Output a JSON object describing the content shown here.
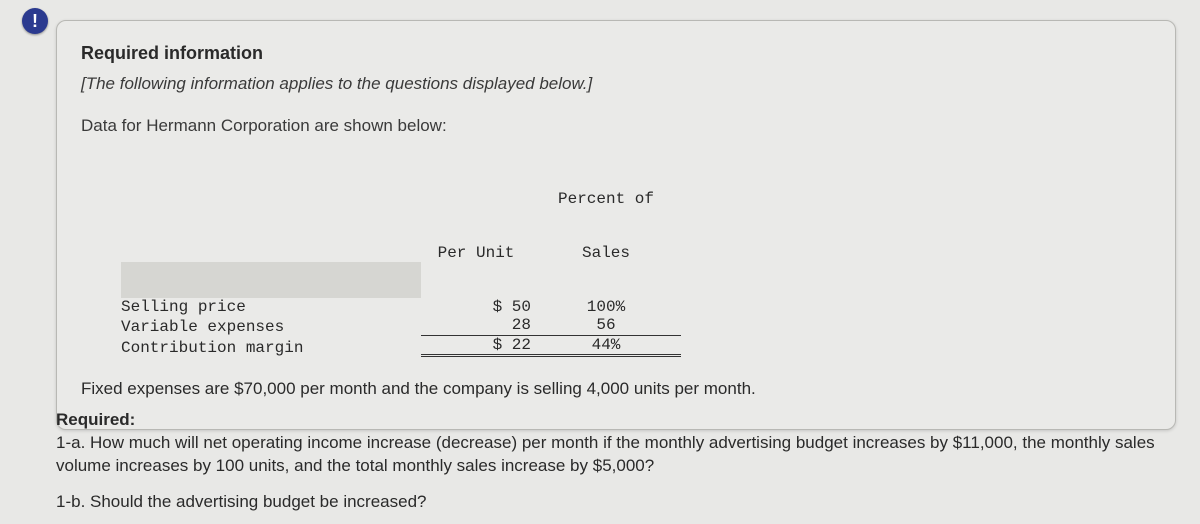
{
  "badge": {
    "glyph": "!"
  },
  "card": {
    "heading": "Required information",
    "italic_note": "[The following information applies to the questions displayed below.]",
    "intro": "Data for Hermann Corporation are shown below:",
    "table": {
      "header_per_unit": "Per Unit",
      "header_percent_line1": "Percent of",
      "header_percent_line2": "Sales",
      "rows": [
        {
          "label": "Selling price",
          "unit": "$ 50",
          "pct": "100%"
        },
        {
          "label": "Variable expenses",
          "unit": "28",
          "pct": "56"
        },
        {
          "label": "Contribution margin",
          "unit": "$ 22",
          "pct": "44%"
        }
      ]
    },
    "footer": "Fixed expenses are $70,000 per month and the company is selling 4,000 units per month."
  },
  "required": {
    "heading": "Required:",
    "q1a": "1-a. How much will net operating income increase (decrease) per month if the monthly advertising budget increases by $11,000, the monthly sales volume increases by 100 units, and the total monthly sales increase by $5,000?",
    "q1b": "1-b. Should the advertising budget be increased?"
  },
  "colors": {
    "background": "#e8e8e6",
    "card_bg": "#eaeae8",
    "card_border": "#b8b8b4",
    "badge_bg": "#2b3a8f",
    "shaded_cell": "#d6d6d2",
    "text": "#2a2a2a"
  }
}
